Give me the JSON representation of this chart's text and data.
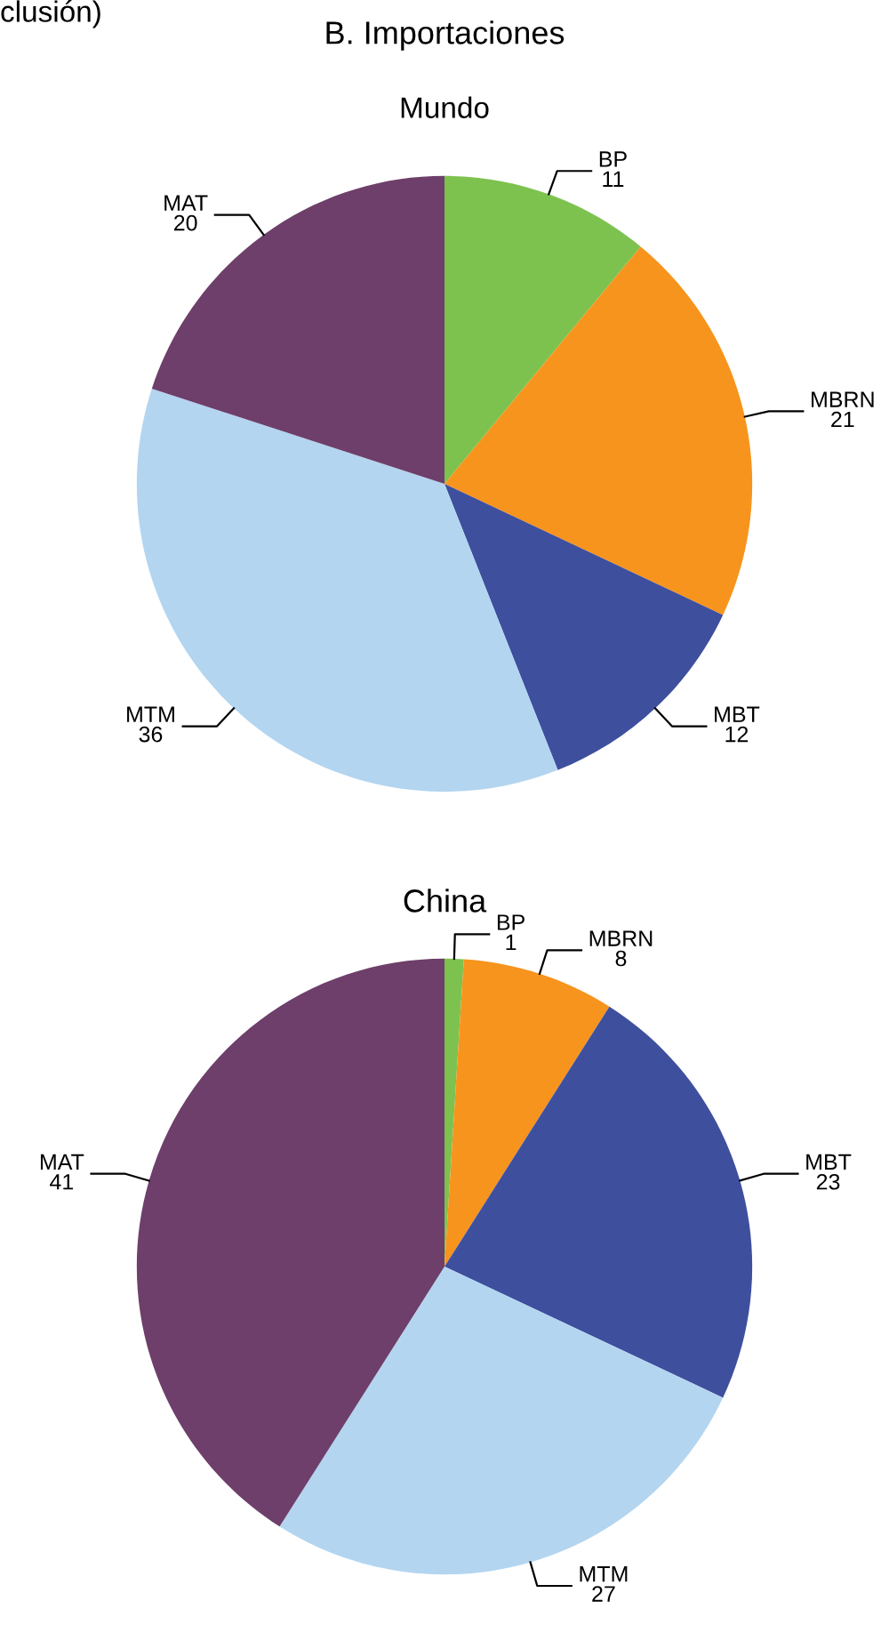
{
  "chart_data": [
    {
      "type": "pie",
      "title": "B. Importaciones",
      "subtitle": "Mundo",
      "annotations": [
        "clusión)"
      ],
      "categories": [
        "BP",
        "MBRN",
        "MBT",
        "MTM",
        "MAT"
      ],
      "values": [
        11,
        21,
        12,
        36,
        20
      ],
      "colors": [
        "#7dc24f",
        "#f7941d",
        "#3e4f9e",
        "#b3d5f0",
        "#6d3f6a"
      ],
      "data_labels": true
    },
    {
      "type": "pie",
      "title": "China",
      "categories": [
        "BP",
        "MBRN",
        "MBT",
        "MTM",
        "MAT"
      ],
      "values": [
        1,
        8,
        23,
        27,
        41
      ],
      "colors": [
        "#7dc24f",
        "#f7941d",
        "#3e4f9e",
        "#b3d5f0",
        "#6d3f6a"
      ],
      "data_labels": true
    }
  ]
}
